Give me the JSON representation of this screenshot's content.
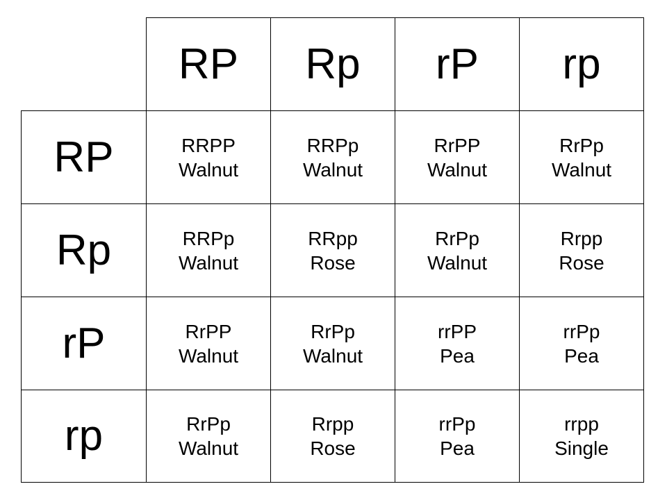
{
  "punnett": {
    "column_headers": [
      "RP",
      "Rp",
      "rP",
      "rp"
    ],
    "row_headers": [
      "RP",
      "Rp",
      "rP",
      "rp"
    ],
    "rows": [
      [
        {
          "genotype": "RRPP",
          "phenotype": "Walnut"
        },
        {
          "genotype": "RRPp",
          "phenotype": "Walnut"
        },
        {
          "genotype": "RrPP",
          "phenotype": "Walnut"
        },
        {
          "genotype": "RrPp",
          "phenotype": "Walnut"
        }
      ],
      [
        {
          "genotype": "RRPp",
          "phenotype": "Walnut"
        },
        {
          "genotype": "RRpp",
          "phenotype": "Rose"
        },
        {
          "genotype": "RrPp",
          "phenotype": "Walnut"
        },
        {
          "genotype": "Rrpp",
          "phenotype": "Rose"
        }
      ],
      [
        {
          "genotype": "RrPP",
          "phenotype": "Walnut"
        },
        {
          "genotype": "RrPp",
          "phenotype": "Walnut"
        },
        {
          "genotype": "rrPP",
          "phenotype": "Pea"
        },
        {
          "genotype": "rrPp",
          "phenotype": "Pea"
        }
      ],
      [
        {
          "genotype": "RrPp",
          "phenotype": "Walnut"
        },
        {
          "genotype": "Rrpp",
          "phenotype": "Rose"
        },
        {
          "genotype": "rrPp",
          "phenotype": "Pea"
        },
        {
          "genotype": "rrpp",
          "phenotype": "Single"
        }
      ]
    ]
  }
}
